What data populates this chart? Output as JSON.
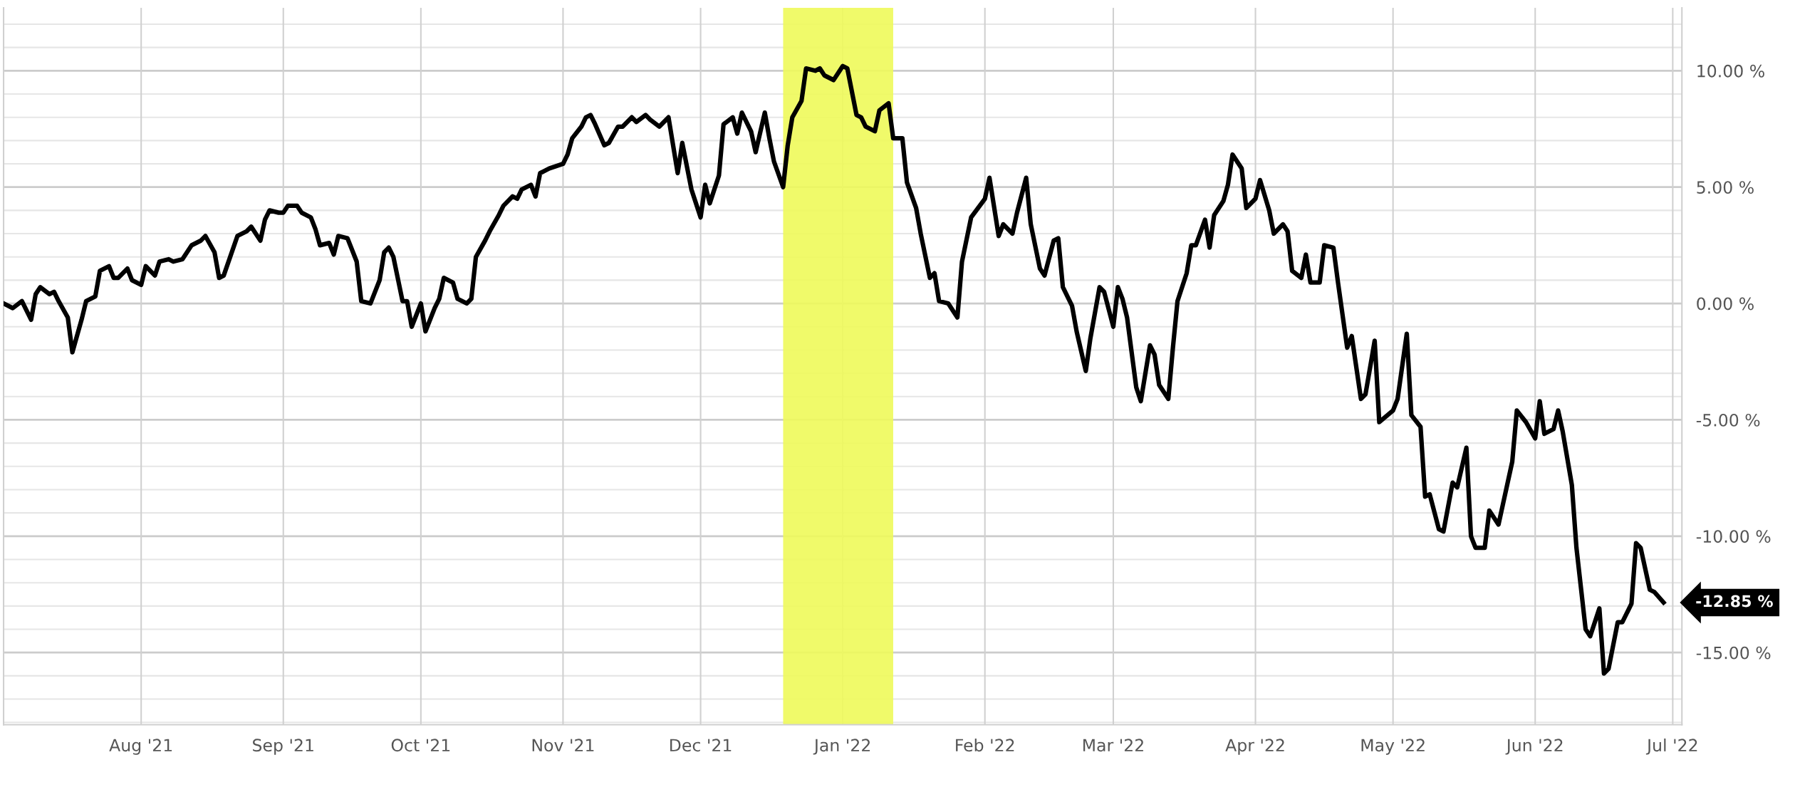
{
  "chart_data": {
    "type": "line",
    "x": [
      "2021-07-02",
      "2021-07-04",
      "2021-07-06",
      "2021-07-08",
      "2021-07-09",
      "2021-07-10",
      "2021-07-12",
      "2021-07-13",
      "2021-07-14",
      "2021-07-16",
      "2021-07-17",
      "2021-07-19",
      "2021-07-20",
      "2021-07-22",
      "2021-07-23",
      "2021-07-25",
      "2021-07-26",
      "2021-07-27",
      "2021-07-29",
      "2021-07-30",
      "2021-08-01",
      "2021-08-02",
      "2021-08-04",
      "2021-08-05",
      "2021-08-07",
      "2021-08-08",
      "2021-08-10",
      "2021-08-12",
      "2021-08-14",
      "2021-08-15",
      "2021-08-17",
      "2021-08-18",
      "2021-08-19",
      "2021-08-22",
      "2021-08-24",
      "2021-08-25",
      "2021-08-27",
      "2021-08-28",
      "2021-08-29",
      "2021-08-31",
      "2021-09-01",
      "2021-09-02",
      "2021-09-04",
      "2021-09-05",
      "2021-09-07",
      "2021-09-08",
      "2021-09-09",
      "2021-09-11",
      "2021-09-12",
      "2021-09-13",
      "2021-09-15",
      "2021-09-17",
      "2021-09-18",
      "2021-09-20",
      "2021-09-22",
      "2021-09-23",
      "2021-09-24",
      "2021-09-25",
      "2021-09-27",
      "2021-09-28",
      "2021-09-29",
      "2021-10-01",
      "2021-10-02",
      "2021-10-04",
      "2021-10-05",
      "2021-10-06",
      "2021-10-08",
      "2021-10-09",
      "2021-10-11",
      "2021-10-12",
      "2021-10-13",
      "2021-10-15",
      "2021-10-16",
      "2021-10-18",
      "2021-10-19",
      "2021-10-21",
      "2021-10-22",
      "2021-10-23",
      "2021-10-25",
      "2021-10-26",
      "2021-10-27",
      "2021-10-29",
      "2021-11-01",
      "2021-11-02",
      "2021-11-03",
      "2021-11-05",
      "2021-11-06",
      "2021-11-07",
      "2021-11-08",
      "2021-11-10",
      "2021-11-11",
      "2021-11-13",
      "2021-11-14",
      "2021-11-16",
      "2021-11-17",
      "2021-11-19",
      "2021-11-20",
      "2021-11-22",
      "2021-11-23",
      "2021-11-24",
      "2021-11-26",
      "2021-11-27",
      "2021-11-29",
      "2021-12-01",
      "2021-12-02",
      "2021-12-03",
      "2021-12-05",
      "2021-12-06",
      "2021-12-08",
      "2021-12-09",
      "2021-12-10",
      "2021-12-12",
      "2021-12-13",
      "2021-12-15",
      "2021-12-16",
      "2021-12-17",
      "2021-12-19",
      "2021-12-20",
      "2021-12-21",
      "2021-12-23",
      "2021-12-24",
      "2021-12-26",
      "2021-12-27",
      "2021-12-28",
      "2021-12-30",
      "2022-01-01",
      "2022-01-02",
      "2022-01-04",
      "2022-01-05",
      "2022-01-06",
      "2022-01-08",
      "2022-01-09",
      "2022-01-11",
      "2022-01-12",
      "2022-01-14",
      "2022-01-15",
      "2022-01-17",
      "2022-01-18",
      "2022-01-20",
      "2022-01-21",
      "2022-01-22",
      "2022-01-24",
      "2022-01-26",
      "2022-01-27",
      "2022-01-29",
      "2022-02-01",
      "2022-02-02",
      "2022-02-04",
      "2022-02-05",
      "2022-02-07",
      "2022-02-08",
      "2022-02-10",
      "2022-02-11",
      "2022-02-13",
      "2022-02-14",
      "2022-02-16",
      "2022-02-17",
      "2022-02-18",
      "2022-02-20",
      "2022-02-21",
      "2022-02-23",
      "2022-02-24",
      "2022-02-26",
      "2022-02-27",
      "2022-03-01",
      "2022-03-02",
      "2022-03-03",
      "2022-03-04",
      "2022-03-06",
      "2022-03-07",
      "2022-03-09",
      "2022-03-10",
      "2022-03-11",
      "2022-03-13",
      "2022-03-14",
      "2022-03-15",
      "2022-03-17",
      "2022-03-18",
      "2022-03-19",
      "2022-03-21",
      "2022-03-22",
      "2022-03-23",
      "2022-03-25",
      "2022-03-26",
      "2022-03-27",
      "2022-03-29",
      "2022-03-30",
      "2022-04-01",
      "2022-04-02",
      "2022-04-04",
      "2022-04-05",
      "2022-04-07",
      "2022-04-08",
      "2022-04-09",
      "2022-04-11",
      "2022-04-12",
      "2022-04-13",
      "2022-04-15",
      "2022-04-16",
      "2022-04-18",
      "2022-04-19",
      "2022-04-21",
      "2022-04-22",
      "2022-04-24",
      "2022-04-25",
      "2022-04-27",
      "2022-04-28",
      "2022-05-01",
      "2022-05-02",
      "2022-05-04",
      "2022-05-05",
      "2022-05-07",
      "2022-05-08",
      "2022-05-09",
      "2022-05-11",
      "2022-05-12",
      "2022-05-14",
      "2022-05-15",
      "2022-05-17",
      "2022-05-18",
      "2022-05-19",
      "2022-05-21",
      "2022-05-22",
      "2022-05-24",
      "2022-05-25",
      "2022-05-27",
      "2022-05-28",
      "2022-05-30",
      "2022-06-01",
      "2022-06-02",
      "2022-06-03",
      "2022-06-05",
      "2022-06-06",
      "2022-06-07",
      "2022-06-09",
      "2022-06-10",
      "2022-06-12",
      "2022-06-13",
      "2022-06-15",
      "2022-06-16",
      "2022-06-17",
      "2022-06-19",
      "2022-06-20",
      "2022-06-22",
      "2022-06-23",
      "2022-06-24",
      "2022-06-26",
      "2022-06-27",
      "2022-06-29"
    ],
    "series": [
      {
        "color": "#000000",
        "values": [
          0.0,
          -0.2,
          0.1,
          -0.7,
          0.4,
          0.7,
          0.4,
          0.5,
          0.1,
          -0.6,
          -2.1,
          -0.7,
          0.1,
          0.3,
          1.4,
          1.6,
          1.1,
          1.1,
          1.5,
          1.0,
          0.8,
          1.6,
          1.2,
          1.8,
          1.9,
          1.8,
          1.9,
          2.5,
          2.7,
          2.9,
          2.2,
          1.1,
          1.2,
          2.9,
          3.1,
          3.3,
          2.7,
          3.6,
          4.0,
          3.9,
          3.9,
          4.2,
          4.2,
          3.9,
          3.7,
          3.2,
          2.5,
          2.6,
          2.1,
          2.9,
          2.8,
          1.8,
          0.1,
          0.0,
          1.0,
          2.2,
          2.4,
          2.0,
          0.1,
          0.1,
          -1.0,
          0.0,
          -1.2,
          -0.2,
          0.2,
          1.1,
          0.9,
          0.2,
          0.0,
          0.2,
          2.0,
          2.7,
          3.1,
          3.8,
          4.2,
          4.6,
          4.5,
          4.9,
          5.1,
          4.6,
          5.6,
          5.8,
          6.0,
          6.4,
          7.1,
          7.6,
          8.0,
          8.1,
          7.7,
          6.8,
          6.9,
          7.6,
          7.6,
          8.0,
          7.8,
          8.1,
          7.9,
          7.6,
          7.8,
          8.0,
          5.6,
          6.9,
          4.9,
          3.7,
          5.1,
          4.3,
          5.5,
          7.7,
          8.0,
          7.3,
          8.2,
          7.4,
          6.5,
          8.2,
          7.1,
          6.1,
          5.0,
          6.8,
          8.0,
          8.7,
          10.1,
          10.0,
          10.1,
          9.8,
          9.6,
          10.2,
          10.1,
          8.1,
          8.0,
          7.6,
          7.4,
          8.3,
          8.6,
          7.1,
          7.1,
          5.2,
          4.1,
          3.0,
          1.1,
          1.3,
          0.1,
          0.0,
          -0.6,
          1.8,
          3.7,
          4.5,
          5.4,
          2.9,
          3.4,
          3.0,
          3.9,
          5.4,
          3.4,
          1.5,
          1.2,
          2.7,
          2.8,
          0.7,
          -0.1,
          -1.2,
          -2.9,
          -1.5,
          0.7,
          0.5,
          -1.0,
          0.7,
          0.2,
          -0.6,
          -3.6,
          -4.2,
          -1.8,
          -2.2,
          -3.5,
          -4.1,
          -1.9,
          0.1,
          1.3,
          2.5,
          2.5,
          3.6,
          2.4,
          3.8,
          4.4,
          5.1,
          6.4,
          5.8,
          4.1,
          4.5,
          5.3,
          4.0,
          3.0,
          3.4,
          3.1,
          1.4,
          1.1,
          2.1,
          0.9,
          0.9,
          2.5,
          2.4,
          0.9,
          -1.9,
          -1.4,
          -4.1,
          -3.9,
          -1.6,
          -5.1,
          -4.6,
          -4.1,
          -1.3,
          -4.8,
          -5.3,
          -8.3,
          -8.2,
          -9.7,
          -9.8,
          -7.7,
          -7.9,
          -6.2,
          -10.0,
          -10.5,
          -10.5,
          -8.9,
          -9.5,
          -8.6,
          -6.8,
          -4.6,
          -5.1,
          -5.8,
          -4.2,
          -5.6,
          -5.4,
          -4.6,
          -5.5,
          -7.8,
          -10.5,
          -14.0,
          -14.3,
          -13.1,
          -15.9,
          -15.7,
          -13.7,
          -13.7,
          -12.9,
          -10.3,
          -10.5,
          -12.3,
          -12.4,
          -12.85
        ]
      }
    ],
    "xlim": [
      "2021-07-02",
      "2022-07-03"
    ],
    "xticks": [
      {
        "value": "2021-08-01",
        "label": "Aug '21"
      },
      {
        "value": "2021-09-01",
        "label": "Sep '21"
      },
      {
        "value": "2021-10-01",
        "label": "Oct '21"
      },
      {
        "value": "2021-11-01",
        "label": "Nov '21"
      },
      {
        "value": "2021-12-01",
        "label": "Dec '21"
      },
      {
        "value": "2022-01-01",
        "label": "Jan '22"
      },
      {
        "value": "2022-02-01",
        "label": "Feb '22"
      },
      {
        "value": "2022-03-01",
        "label": "Mar '22"
      },
      {
        "value": "2022-04-01",
        "label": "Apr '22"
      },
      {
        "value": "2022-05-01",
        "label": "May '22"
      },
      {
        "value": "2022-06-01",
        "label": "Jun '22"
      },
      {
        "value": "2022-07-01",
        "label": "Jul '22"
      }
    ],
    "ylim": [
      -18.1,
      12.7
    ],
    "yticks": [
      {
        "value": -18,
        "label": null
      },
      {
        "value": -17,
        "label": null
      },
      {
        "value": -16,
        "label": null
      },
      {
        "value": -15,
        "label": "-15.00 %"
      },
      {
        "value": -14,
        "label": null
      },
      {
        "value": -13,
        "label": null
      },
      {
        "value": -12,
        "label": null
      },
      {
        "value": -11,
        "label": null
      },
      {
        "value": -10,
        "label": "-10.00 %"
      },
      {
        "value": -9,
        "label": null
      },
      {
        "value": -8,
        "label": null
      },
      {
        "value": -7,
        "label": null
      },
      {
        "value": -6,
        "label": null
      },
      {
        "value": -5,
        "label": "-5.00 %"
      },
      {
        "value": -4,
        "label": null
      },
      {
        "value": -3,
        "label": null
      },
      {
        "value": -2,
        "label": null
      },
      {
        "value": -1,
        "label": null
      },
      {
        "value": 0,
        "label": "0.00 %"
      },
      {
        "value": 1,
        "label": null
      },
      {
        "value": 2,
        "label": null
      },
      {
        "value": 3,
        "label": null
      },
      {
        "value": 4,
        "label": null
      },
      {
        "value": 5,
        "label": "5.00 %"
      },
      {
        "value": 6,
        "label": null
      },
      {
        "value": 7,
        "label": null
      },
      {
        "value": 8,
        "label": null
      },
      {
        "value": 9,
        "label": null
      },
      {
        "value": 10,
        "label": "10.00 %"
      },
      {
        "value": 11,
        "label": null
      },
      {
        "value": 12,
        "label": null
      }
    ],
    "grid": true,
    "bands": [
      {
        "axis": "x",
        "from": "2021-12-19",
        "to": "2022-01-12",
        "color": "#eef95a"
      }
    ],
    "annotations": [
      {
        "text": "-12.85 %",
        "x": "2022-06-29",
        "y": -12.85
      }
    ]
  }
}
